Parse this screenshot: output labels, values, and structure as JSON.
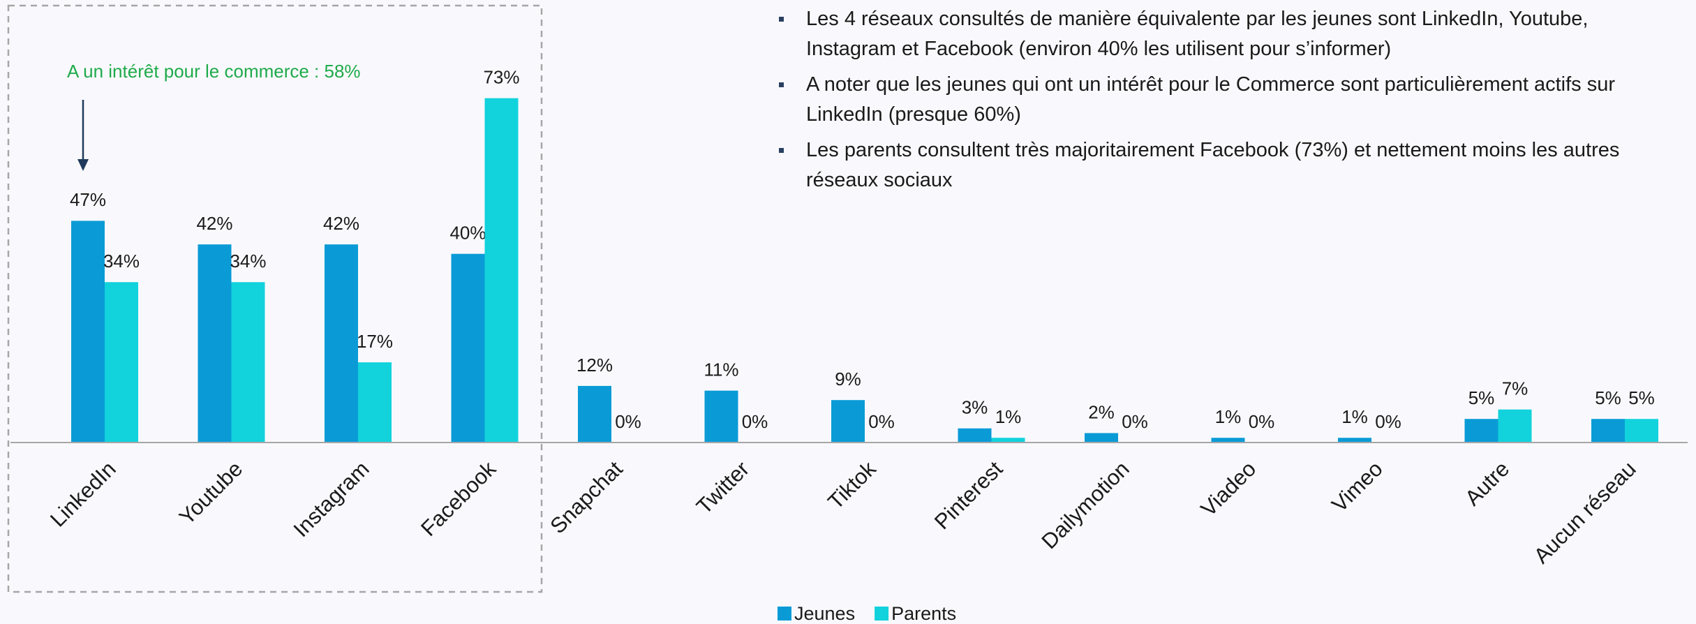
{
  "chart_data": {
    "type": "bar",
    "categories": [
      "LinkedIn",
      "Youtube",
      "Instagram",
      "Facebook",
      "Snapchat",
      "Twitter",
      "Tiktok",
      "Pinterest",
      "Dailymotion",
      "Viadeo",
      "Vimeo",
      "Autre",
      "Aucun réseau"
    ],
    "series": [
      {
        "name": "Jeunes",
        "color": "#0a9bd6",
        "values": [
          47,
          42,
          42,
          40,
          12,
          11,
          9,
          3,
          2,
          1,
          1,
          5,
          5
        ],
        "value_labels": [
          "47%",
          "42%",
          "42%",
          "40%",
          "12%",
          "11%",
          "9%",
          "3%",
          "2%",
          "1%",
          "1%",
          "5%",
          "5%"
        ]
      },
      {
        "name": "Parents",
        "color": "#12d2dc",
        "values": [
          34,
          34,
          17,
          73,
          0,
          0,
          0,
          1,
          0,
          0,
          0,
          7,
          5
        ],
        "value_labels": [
          "34%",
          "34%",
          "17%",
          "73%",
          "0%",
          "0%",
          "0%",
          "1%",
          "0%",
          "0%",
          "0%",
          "7%",
          "5%"
        ]
      }
    ],
    "annotation": "A un intérêt pour le commerce : 58%",
    "bullets": [
      "Les 4 réseaux consultés de manière équivalente par les jeunes sont LinkedIn, Youtube, Instagram et Facebook (environ 40% les utilisent pour s’informer)",
      "A noter que les jeunes qui ont un intérêt pour le Commerce sont particulièrement actifs sur LinkedIn (presque 60%)",
      "Les parents consultent très majoritairement Facebook (73%) et nettement moins les autres réseaux sociaux"
    ]
  }
}
